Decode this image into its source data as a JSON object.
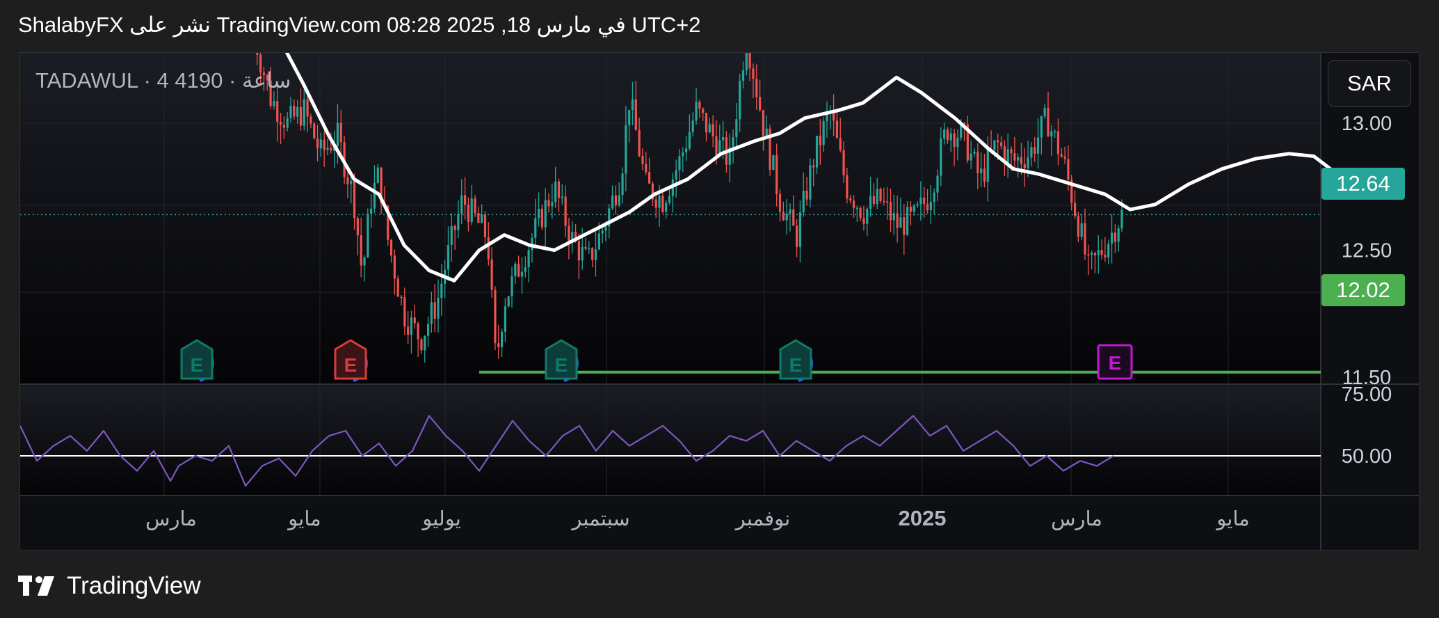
{
  "header": {
    "text": "ShalabyFX نشر على TradingView.com في مارس 18, 2025 08:28 UTC+2"
  },
  "symbol_line": "TADAWUL · 4 ساعة · 4190",
  "currency_button": "SAR",
  "price_badges": {
    "last": {
      "value": "12.64",
      "color": "#26a69a"
    },
    "support": {
      "value": "12.02",
      "color": "#4caf50"
    }
  },
  "footer": {
    "brand": "TradingView"
  },
  "colors": {
    "up": "#26a69a",
    "down": "#ef5350",
    "ma": "#ffffff",
    "rsi": "#7e57c2",
    "support": "#4caf50"
  },
  "chart_data": {
    "type": "candlestick",
    "price_axis": {
      "ticks": [
        "13.00",
        "12.50",
        "11.50"
      ],
      "values": [
        13.0,
        12.5,
        11.5
      ]
    },
    "rsi_axis": {
      "ticks": [
        "75.00",
        "50.00"
      ],
      "values": [
        75,
        50
      ]
    },
    "x_axis": {
      "labels": [
        "مارس",
        "مايو",
        "يوليو",
        "سبتمبر",
        "نوفمبر",
        "2025",
        "مارس",
        "مايو"
      ],
      "bold": [
        false,
        false,
        false,
        false,
        false,
        true,
        false,
        false
      ]
    },
    "ylim": [
      11.5,
      13.3
    ],
    "last_price": 12.64,
    "support_level": 12.02,
    "earnings_markers": [
      {
        "label": "E",
        "style": "teal"
      },
      {
        "label": "E",
        "style": "red"
      },
      {
        "label": "E",
        "style": "teal"
      },
      {
        "label": "E",
        "style": "teal"
      },
      {
        "label": "E",
        "style": "magenta"
      }
    ],
    "moving_average_path": [
      [
        0.3,
        13.4
      ],
      [
        0.34,
        13.15
      ],
      [
        0.37,
        12.95
      ],
      [
        0.4,
        12.78
      ],
      [
        0.43,
        12.72
      ],
      [
        0.46,
        12.52
      ],
      [
        0.49,
        12.42
      ],
      [
        0.52,
        12.38
      ],
      [
        0.55,
        12.5
      ],
      [
        0.58,
        12.56
      ],
      [
        0.61,
        12.52
      ],
      [
        0.64,
        12.5
      ],
      [
        0.67,
        12.55
      ],
      [
        0.7,
        12.6
      ],
      [
        0.73,
        12.65
      ],
      [
        0.76,
        12.72
      ],
      [
        0.8,
        12.78
      ],
      [
        0.84,
        12.88
      ],
      [
        0.88,
        12.93
      ],
      [
        0.91,
        12.96
      ],
      [
        0.94,
        13.02
      ],
      [
        0.98,
        13.05
      ],
      [
        1.01,
        13.08
      ],
      [
        1.05,
        13.18
      ],
      [
        1.08,
        13.12
      ],
      [
        1.12,
        13.02
      ],
      [
        1.16,
        12.9
      ],
      [
        1.19,
        12.82
      ],
      [
        1.22,
        12.8
      ],
      [
        1.26,
        12.76
      ],
      [
        1.3,
        12.72
      ],
      [
        1.33,
        12.66
      ],
      [
        1.36,
        12.68
      ],
      [
        1.4,
        12.76
      ],
      [
        1.44,
        12.82
      ],
      [
        1.48,
        12.86
      ],
      [
        1.52,
        12.88
      ],
      [
        1.55,
        12.87
      ],
      [
        1.57,
        12.82
      ],
      [
        1.59,
        12.71
      ]
    ],
    "price_series": [
      [
        0.28,
        13.35
      ],
      [
        0.3,
        13.1
      ],
      [
        0.32,
        13.0
      ],
      [
        0.34,
        13.05
      ],
      [
        0.36,
        12.88
      ],
      [
        0.38,
        12.95
      ],
      [
        0.4,
        12.7
      ],
      [
        0.41,
        12.4
      ],
      [
        0.42,
        12.7
      ],
      [
        0.43,
        12.8
      ],
      [
        0.44,
        12.55
      ],
      [
        0.46,
        12.25
      ],
      [
        0.48,
        12.15
      ],
      [
        0.5,
        12.3
      ],
      [
        0.51,
        12.45
      ],
      [
        0.53,
        12.7
      ],
      [
        0.55,
        12.6
      ],
      [
        0.56,
        12.55
      ],
      [
        0.57,
        12.05
      ],
      [
        0.58,
        12.3
      ],
      [
        0.6,
        12.45
      ],
      [
        0.62,
        12.6
      ],
      [
        0.64,
        12.75
      ],
      [
        0.66,
        12.55
      ],
      [
        0.68,
        12.45
      ],
      [
        0.7,
        12.6
      ],
      [
        0.72,
        12.8
      ],
      [
        0.73,
        13.1
      ],
      [
        0.75,
        12.75
      ],
      [
        0.77,
        12.7
      ],
      [
        0.79,
        12.85
      ],
      [
        0.81,
        13.05
      ],
      [
        0.83,
        12.95
      ],
      [
        0.85,
        12.85
      ],
      [
        0.87,
        13.35
      ],
      [
        0.89,
        13.0
      ],
      [
        0.91,
        12.7
      ],
      [
        0.93,
        12.55
      ],
      [
        0.95,
        12.85
      ],
      [
        0.97,
        13.05
      ],
      [
        0.99,
        12.75
      ],
      [
        1.01,
        12.65
      ],
      [
        1.03,
        12.7
      ],
      [
        1.05,
        12.6
      ],
      [
        1.07,
        12.62
      ],
      [
        1.09,
        12.72
      ],
      [
        1.11,
        12.98
      ],
      [
        1.13,
        12.95
      ],
      [
        1.15,
        12.78
      ],
      [
        1.17,
        12.92
      ],
      [
        1.19,
        12.85
      ],
      [
        1.21,
        12.88
      ],
      [
        1.23,
        13.02
      ],
      [
        1.25,
        12.85
      ],
      [
        1.27,
        12.58
      ],
      [
        1.28,
        12.42
      ],
      [
        1.3,
        12.52
      ],
      [
        1.32,
        12.64
      ]
    ],
    "rsi_series": [
      [
        0.0,
        62
      ],
      [
        0.02,
        48
      ],
      [
        0.04,
        54
      ],
      [
        0.06,
        58
      ],
      [
        0.08,
        52
      ],
      [
        0.1,
        60
      ],
      [
        0.12,
        50
      ],
      [
        0.14,
        44
      ],
      [
        0.16,
        52
      ],
      [
        0.18,
        40
      ],
      [
        0.19,
        46
      ],
      [
        0.21,
        50
      ],
      [
        0.23,
        48
      ],
      [
        0.25,
        54
      ],
      [
        0.27,
        38
      ],
      [
        0.29,
        46
      ],
      [
        0.31,
        49
      ],
      [
        0.33,
        42
      ],
      [
        0.35,
        52
      ],
      [
        0.37,
        58
      ],
      [
        0.39,
        60
      ],
      [
        0.41,
        50
      ],
      [
        0.43,
        55
      ],
      [
        0.45,
        46
      ],
      [
        0.47,
        52
      ],
      [
        0.49,
        66
      ],
      [
        0.51,
        58
      ],
      [
        0.53,
        52
      ],
      [
        0.55,
        44
      ],
      [
        0.57,
        54
      ],
      [
        0.59,
        64
      ],
      [
        0.61,
        56
      ],
      [
        0.63,
        50
      ],
      [
        0.65,
        58
      ],
      [
        0.67,
        62
      ],
      [
        0.69,
        52
      ],
      [
        0.71,
        60
      ],
      [
        0.73,
        54
      ],
      [
        0.75,
        58
      ],
      [
        0.77,
        62
      ],
      [
        0.79,
        56
      ],
      [
        0.81,
        48
      ],
      [
        0.83,
        52
      ],
      [
        0.85,
        58
      ],
      [
        0.87,
        56
      ],
      [
        0.89,
        60
      ],
      [
        0.91,
        50
      ],
      [
        0.93,
        56
      ],
      [
        0.95,
        52
      ],
      [
        0.97,
        48
      ],
      [
        0.99,
        54
      ],
      [
        1.01,
        58
      ],
      [
        1.03,
        54
      ],
      [
        1.05,
        60
      ],
      [
        1.07,
        66
      ],
      [
        1.09,
        58
      ],
      [
        1.11,
        62
      ],
      [
        1.13,
        52
      ],
      [
        1.15,
        56
      ],
      [
        1.17,
        60
      ],
      [
        1.19,
        54
      ],
      [
        1.21,
        46
      ],
      [
        1.23,
        50
      ],
      [
        1.25,
        44
      ],
      [
        1.27,
        48
      ],
      [
        1.29,
        46
      ],
      [
        1.31,
        50
      ]
    ]
  }
}
